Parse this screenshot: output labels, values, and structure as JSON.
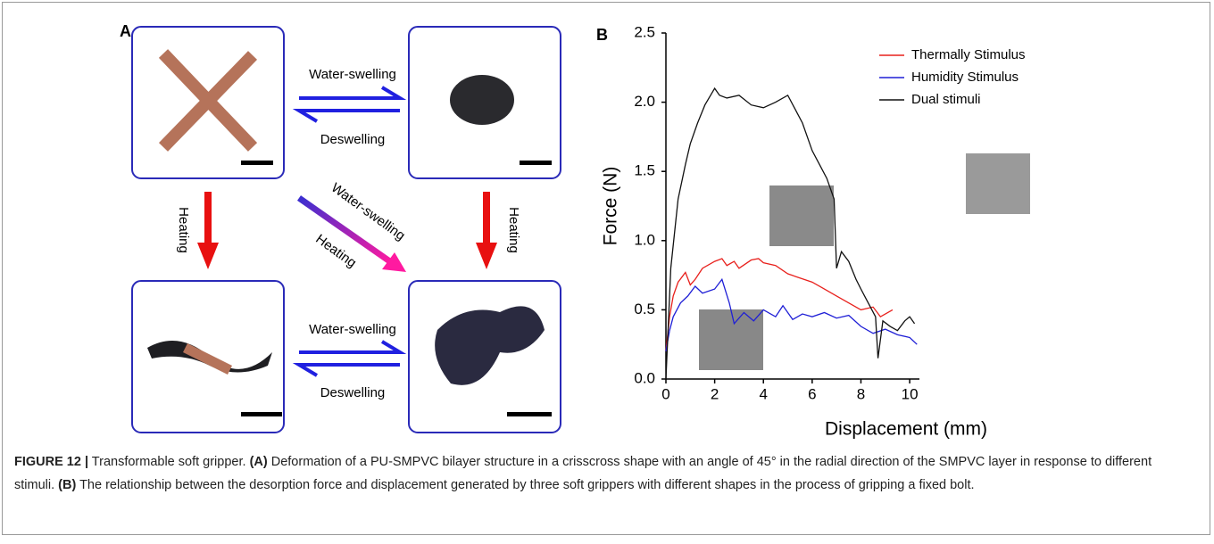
{
  "panel_a": {
    "label": "A",
    "top_forward": "Water-swelling",
    "top_back": "Deswelling",
    "bottom_forward": "Water-swelling",
    "bottom_back": "Deswelling",
    "left_down": "Heating",
    "right_down": "Heating",
    "diagonal_1": "Water-swelling",
    "diagonal_2": "Heating"
  },
  "chart_data": {
    "type": "line",
    "label": "B",
    "x_label": "Displacement (mm)",
    "y_label": "Force (N)",
    "xlim": [
      0,
      10.4
    ],
    "ylim": [
      0,
      2.5
    ],
    "xticks": [
      0,
      2,
      4,
      6,
      8,
      10
    ],
    "yticks": [
      {
        "value": 0,
        "label": "0.0"
      },
      0.5,
      {
        "value": 1,
        "label": "1.0"
      },
      1.5,
      {
        "value": 2,
        "label": "2.0"
      },
      2.5
    ],
    "legend": "top-right",
    "series": [
      {
        "name": "Thermally Stimulus",
        "color": "#e8201c",
        "x": [
          0,
          0.15,
          0.3,
          0.5,
          0.8,
          1.0,
          1.2,
          1.5,
          2.0,
          2.3,
          2.5,
          2.8,
          3.0,
          3.5,
          3.8,
          4.0,
          4.5,
          5.0,
          5.5,
          6.0,
          6.5,
          7.0,
          7.5,
          8.0,
          8.5,
          8.8,
          9.0,
          9.3
        ],
        "values": [
          0.2,
          0.45,
          0.6,
          0.7,
          0.77,
          0.68,
          0.72,
          0.8,
          0.85,
          0.87,
          0.82,
          0.85,
          0.8,
          0.86,
          0.87,
          0.84,
          0.82,
          0.76,
          0.73,
          0.7,
          0.65,
          0.6,
          0.55,
          0.5,
          0.52,
          0.45,
          0.47,
          0.5
        ]
      },
      {
        "name": "Humidity Stimulus",
        "color": "#1f1fd6",
        "x": [
          0,
          0.15,
          0.3,
          0.6,
          0.9,
          1.2,
          1.5,
          2.0,
          2.3,
          2.6,
          2.8,
          3.2,
          3.6,
          4.0,
          4.5,
          4.8,
          5.2,
          5.6,
          6.0,
          6.5,
          7.0,
          7.5,
          8.0,
          8.5,
          9.0,
          9.5,
          10.0,
          10.3
        ],
        "values": [
          0.2,
          0.35,
          0.45,
          0.55,
          0.6,
          0.67,
          0.62,
          0.65,
          0.72,
          0.55,
          0.4,
          0.48,
          0.42,
          0.5,
          0.45,
          0.53,
          0.43,
          0.47,
          0.45,
          0.48,
          0.44,
          0.46,
          0.38,
          0.33,
          0.36,
          0.32,
          0.3,
          0.25
        ]
      },
      {
        "name": "Dual stimuli",
        "color": "#111111",
        "x": [
          0,
          0.2,
          0.5,
          0.8,
          1.0,
          1.3,
          1.6,
          2.0,
          2.2,
          2.5,
          3.0,
          3.5,
          4.0,
          4.5,
          5.0,
          5.3,
          5.6,
          6.0,
          6.3,
          6.6,
          6.9,
          7.0,
          7.2,
          7.5,
          7.8,
          8.0,
          8.3,
          8.6,
          8.7,
          8.9,
          9.2,
          9.5,
          9.8,
          10.0,
          10.2
        ],
        "values": [
          0,
          0.8,
          1.3,
          1.55,
          1.7,
          1.85,
          1.98,
          2.1,
          2.05,
          2.03,
          2.05,
          1.98,
          1.96,
          2.0,
          2.05,
          1.95,
          1.85,
          1.65,
          1.55,
          1.45,
          1.3,
          0.8,
          0.92,
          0.85,
          0.72,
          0.65,
          0.55,
          0.45,
          0.15,
          0.42,
          0.38,
          0.35,
          0.42,
          0.45,
          0.4
        ]
      }
    ]
  },
  "caption": {
    "segments": [
      {
        "text": "FIGURE 12 |",
        "bold": true
      },
      {
        "text": " Transformable soft gripper. ",
        "bold": false
      },
      {
        "text": "(A)",
        "bold": true
      },
      {
        "text": " Deformation of a PU-SMPVC bilayer structure in a crisscross shape with an angle of 45° in the radial direction of the SMPVC layer in response to different stimuli. ",
        "bold": false
      },
      {
        "text": "(B)",
        "bold": true
      },
      {
        "text": " The relationship between the desorption force and displacement generated by three soft grippers with different shapes in the process of gripping a fixed bolt.",
        "bold": false
      }
    ]
  }
}
